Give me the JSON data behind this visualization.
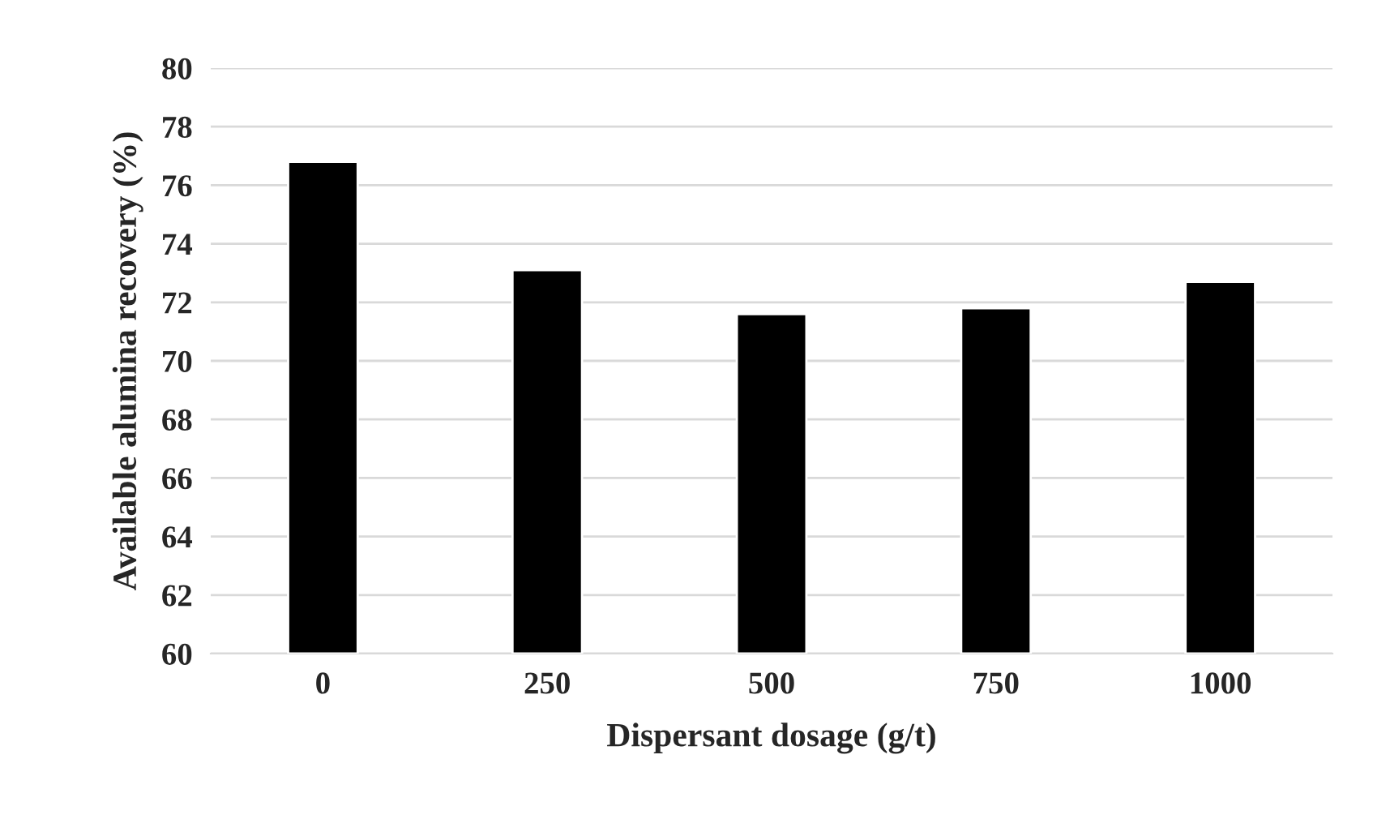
{
  "chart_data": {
    "type": "bar",
    "xlabel": "Dispersant dosage (g/t)",
    "ylabel": "Available alumina recovery (%)",
    "categories": [
      "0",
      "250",
      "500",
      "750",
      "1000"
    ],
    "values": [
      76.8,
      73.1,
      71.6,
      71.8,
      72.7
    ],
    "color": "#000000",
    "ylim": [
      60,
      80
    ],
    "yticks": [
      60,
      62,
      64,
      66,
      68,
      70,
      72,
      74,
      76,
      78,
      80
    ],
    "grid": "y"
  }
}
